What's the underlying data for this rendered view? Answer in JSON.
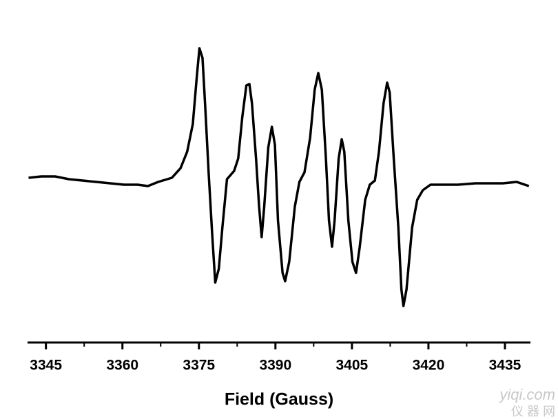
{
  "chart_data": {
    "type": "line",
    "x_label": "Field (Gauss)",
    "watermark": "yiqi.com",
    "watermark_cn": "仪 器 网",
    "x": [
      3341.6,
      3344.1,
      3346.8,
      3349.5,
      3352.2,
      3354.9,
      3357.6,
      3360.3,
      3363.0,
      3365.0,
      3367.0,
      3369.7,
      3371.4,
      3372.7,
      3373.8,
      3374.6,
      3375.1,
      3375.7,
      3376.2,
      3376.9,
      3377.6,
      3378.2,
      3378.9,
      3379.6,
      3380.5,
      3381.9,
      3382.7,
      3383.5,
      3384.3,
      3384.9,
      3385.4,
      3386.2,
      3386.8,
      3387.3,
      3387.8,
      3388.6,
      3389.3,
      3389.9,
      3390.5,
      3391.4,
      3391.9,
      3392.7,
      3393.8,
      3394.7,
      3395.7,
      3396.8,
      3397.7,
      3398.4,
      3399.1,
      3399.9,
      3400.5,
      3401.1,
      3401.6,
      3402.4,
      3403.0,
      3403.5,
      3404.3,
      3405.1,
      3405.8,
      3406.5,
      3407.6,
      3408.5,
      3409.5,
      3410.3,
      3411.2,
      3411.9,
      3412.4,
      3413.2,
      3414.1,
      3414.7,
      3415.1,
      3415.7,
      3416.8,
      3417.8,
      3418.9,
      3420.4,
      3423.1,
      3425.8,
      3429.2,
      3431.9,
      3434.6,
      3437.3,
      3439.7
    ],
    "series": [
      {
        "color": "#000000",
        "values": [
          0.06,
          0.07,
          0.07,
          0.05,
          0.04,
          0.03,
          0.02,
          0.01,
          0.01,
          0,
          0.03,
          0.06,
          0.13,
          0.25,
          0.45,
          0.8,
          1.0,
          0.93,
          0.6,
          0.1,
          -0.35,
          -0.7,
          -0.6,
          -0.3,
          0.05,
          0.11,
          0.2,
          0.5,
          0.73,
          0.74,
          0.6,
          0.2,
          -0.15,
          -0.37,
          -0.15,
          0.28,
          0.43,
          0.3,
          -0.25,
          -0.63,
          -0.69,
          -0.55,
          -0.15,
          0.03,
          0.1,
          0.35,
          0.7,
          0.82,
          0.7,
          0.2,
          -0.25,
          -0.44,
          -0.25,
          0.2,
          0.34,
          0.25,
          -0.25,
          -0.55,
          -0.63,
          -0.45,
          -0.1,
          0.01,
          0.04,
          0.25,
          0.6,
          0.75,
          0.68,
          0.2,
          -0.3,
          -0.75,
          -0.87,
          -0.75,
          -0.3,
          -0.1,
          -0.03,
          0.01,
          0.01,
          0.01,
          0.02,
          0.02,
          0.02,
          0.03,
          0
        ]
      }
    ],
    "xlim": [
      3341.4,
      3440
    ],
    "ylim": [
      -1.135,
      1.1
    ],
    "xticks": [
      3345,
      3360,
      3375,
      3390,
      3405,
      3420,
      3435
    ],
    "xminorticks": [
      3352.5,
      3367.5,
      3382.5,
      3397.5,
      3412.5,
      3427.5
    ]
  }
}
